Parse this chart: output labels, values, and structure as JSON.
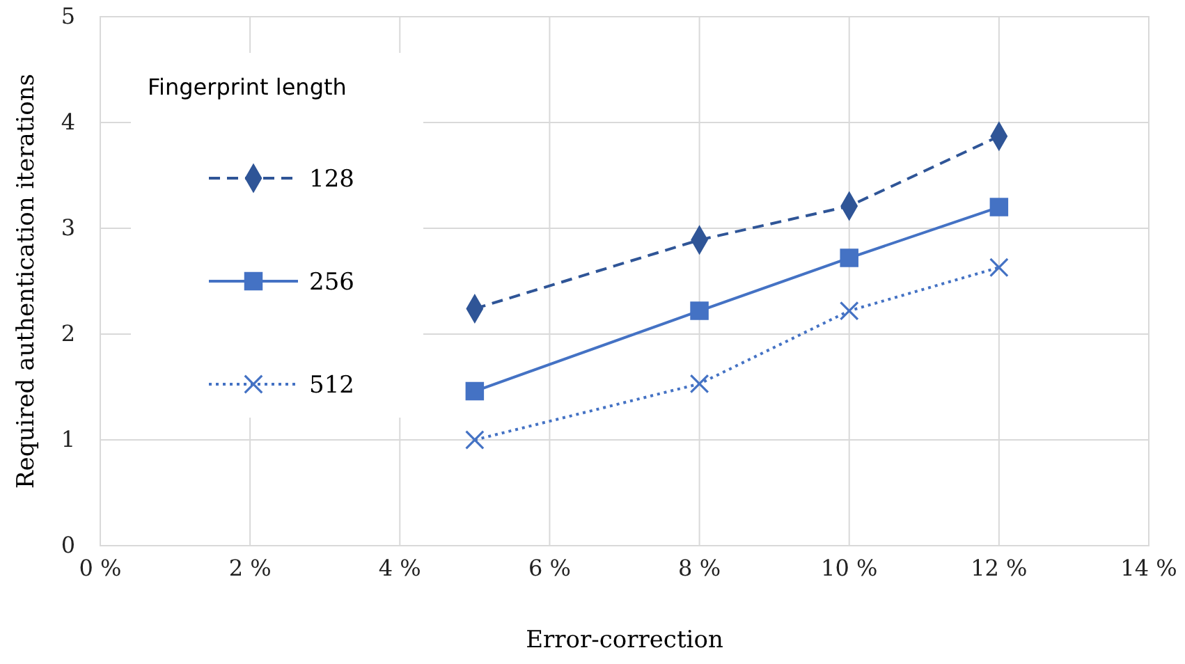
{
  "chart_data": {
    "type": "line",
    "xlabel": "Error-correction",
    "ylabel": "Required authentication iterations",
    "legend_title": "Fingerprint length",
    "legend": "top left",
    "grid": true,
    "x": [
      5,
      8,
      10,
      12
    ],
    "xlim": [
      0,
      14
    ],
    "xticks": [
      {
        "value": 0,
        "label": "0 %"
      },
      {
        "value": 2,
        "label": "2 %"
      },
      {
        "value": 4,
        "label": "4 %"
      },
      {
        "value": 6,
        "label": "6 %"
      },
      {
        "value": 8,
        "label": "8 %"
      },
      {
        "value": 10,
        "label": "10 %"
      },
      {
        "value": 12,
        "label": "12 %"
      },
      {
        "value": 14,
        "label": "14 %"
      }
    ],
    "ylim": [
      0,
      5
    ],
    "yticks": [
      0,
      1,
      2,
      3,
      4,
      5
    ],
    "series": [
      {
        "name": "128",
        "color": "#2f5597",
        "values": [
          2.24,
          2.89,
          3.21,
          3.87
        ],
        "marker": "diamond",
        "line_style": "dashed"
      },
      {
        "name": "256",
        "color": "#4472c4",
        "values": [
          1.46,
          2.22,
          2.72,
          3.2
        ],
        "marker": "square",
        "line_style": "solid"
      },
      {
        "name": "512",
        "color": "#4472c4",
        "values": [
          1.0,
          1.53,
          2.22,
          2.63
        ],
        "marker": "cross",
        "line_style": "dotted"
      }
    ]
  }
}
